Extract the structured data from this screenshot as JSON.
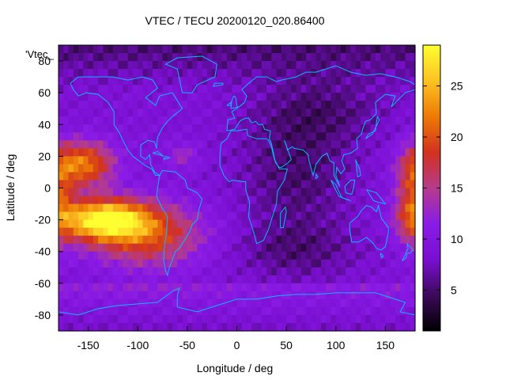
{
  "chart_data": {
    "type": "heatmap",
    "title": "VTEC / TECU 20200120_020.86400",
    "xlabel": "Longitude / deg",
    "ylabel": "Latitude / deg",
    "xlim": [
      -180,
      180
    ],
    "ylim": [
      -90,
      90
    ],
    "x_ticks": [
      -150,
      -100,
      -50,
      0,
      50,
      100,
      150
    ],
    "y_ticks": [
      -80,
      -60,
      -40,
      -20,
      0,
      20,
      40,
      60,
      80
    ],
    "colorbar": {
      "range": [
        1,
        29
      ],
      "ticks": [
        5,
        10,
        15,
        20,
        25
      ],
      "colormap": [
        "#000000",
        "#3c0a5a",
        "#7a0fd0",
        "#8a1be6",
        "#b43c8c",
        "#d2321e",
        "#ec7a06",
        "#fcc224",
        "#fffe30"
      ]
    },
    "legend_label": "'Vtec_",
    "overlay": "world coastlines",
    "coastline_color": "#0fb4ff",
    "grid": false,
    "field": {
      "background_tecu": 9,
      "polar_tecu": 5,
      "southern_band_tecu": 14,
      "lon_step_deg": 5,
      "lat_step_deg": 5,
      "hotspots": [
        {
          "lon": -135,
          "lat": -20,
          "peak_tecu": 28,
          "lon_spread": 32,
          "lat_spread": 9
        },
        {
          "lon": -155,
          "lat": 15,
          "peak_tecu": 13,
          "lon_spread": 22,
          "lat_spread": 10
        },
        {
          "lon": -90,
          "lat": -30,
          "peak_tecu": 10,
          "lon_spread": 40,
          "lat_spread": 14
        },
        {
          "lon": -55,
          "lat": 20,
          "peak_tecu": 4,
          "lon_spread": 12,
          "lat_spread": 6
        },
        {
          "lon": 178,
          "lat": -5,
          "peak_tecu": 9,
          "lon_spread": 12,
          "lat_spread": 20
        },
        {
          "lon": 60,
          "lat": 10,
          "peak_tecu": -4,
          "lon_spread": 40,
          "lat_spread": 30
        },
        {
          "lon": 90,
          "lat": 50,
          "peak_tecu": -3,
          "lon_spread": 50,
          "lat_spread": 15
        },
        {
          "lon": 60,
          "lat": -40,
          "peak_tecu": -3,
          "lon_spread": 45,
          "lat_spread": 12
        }
      ]
    }
  }
}
